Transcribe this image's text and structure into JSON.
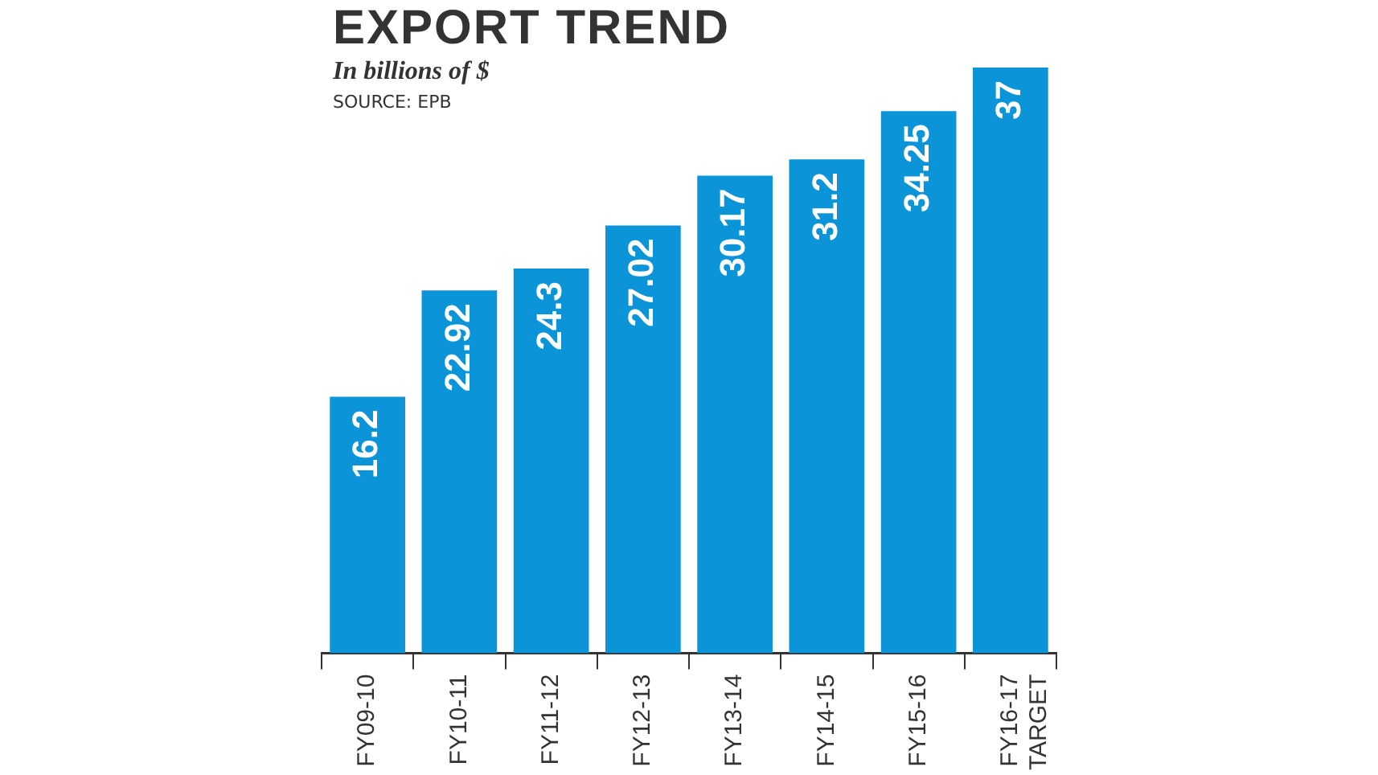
{
  "chart_data": {
    "type": "bar",
    "title": "EXPORT TREND",
    "subtitle": "In billions of $",
    "annotations": [
      "SOURCE: EPB"
    ],
    "categories": [
      "FY09-10",
      "FY10-11",
      "FY11-12",
      "FY12-13",
      "FY13-14",
      "FY14-15",
      "FY15-16",
      "FY16-17 TARGET"
    ],
    "values": [
      16.2,
      22.92,
      24.3,
      27.02,
      30.17,
      31.2,
      34.25,
      37
    ],
    "color": "#0b94d8",
    "data_labels": true,
    "grid": false,
    "legend": false
  }
}
